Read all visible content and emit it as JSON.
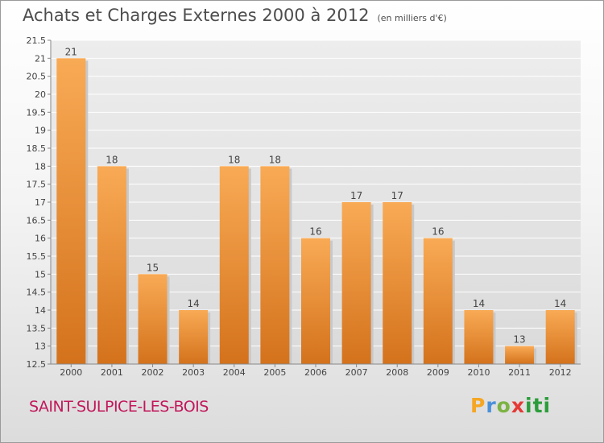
{
  "title": "Achats et Charges Externes 2000 à 2012",
  "subtitle": "(en milliers d'€)",
  "commune": "SAINT-SULPICE-LES-BOIS",
  "logo": "Proxiti",
  "colors": {
    "bar_light": "#f9aa55",
    "bar_dark": "#d4721c",
    "grid": "#ffffff",
    "commune": "#c2185b"
  },
  "chart_data": {
    "type": "bar",
    "categories": [
      "2000",
      "2001",
      "2002",
      "2003",
      "2004",
      "2005",
      "2006",
      "2007",
      "2008",
      "2009",
      "2010",
      "2011",
      "2012"
    ],
    "values": [
      21,
      18,
      15,
      14,
      18,
      18,
      16,
      17,
      17,
      16,
      14,
      13,
      14
    ],
    "ylim": [
      12.5,
      21.5
    ],
    "yticks": [
      12.5,
      13,
      13.5,
      14,
      14.5,
      15,
      15.5,
      16,
      16.5,
      17,
      17.5,
      18,
      18.5,
      19,
      19.5,
      20,
      20.5,
      21,
      21.5
    ],
    "grid": true
  }
}
